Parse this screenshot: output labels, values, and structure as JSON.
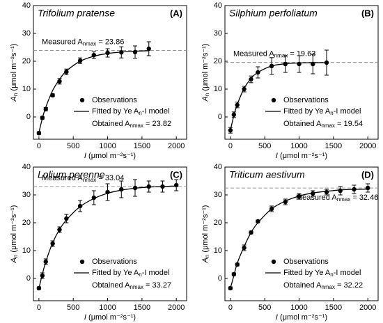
{
  "chart_data": [
    {
      "type": "scatter",
      "title": "Trifolium pratense",
      "panel_label": "(A)",
      "x_label": "I",
      "x_label_unit": " (μmol m⁻²s⁻¹)",
      "y_label": "A",
      "y_label_sub": "n",
      "y_label_unit": " (μmol m⁻²s⁻¹)",
      "x": [
        0,
        50,
        100,
        200,
        300,
        400,
        600,
        800,
        1000,
        1200,
        1400,
        1600
      ],
      "series": [
        {
          "name": "Observations",
          "color": "#000000",
          "values": [
            -5.8,
            -0.3,
            2.8,
            7.8,
            12.8,
            16.2,
            20.2,
            22.2,
            23,
            23.2,
            23.3,
            24.5
          ],
          "errors": [
            0.5,
            0.5,
            0.6,
            0.5,
            1,
            1,
            1,
            1.2,
            1.5,
            2,
            2.2,
            2.5
          ]
        },
        {
          "name": "Fitted by Ye A",
          "name_sub": "n",
          "name_tail": "-I model",
          "color": "#000000",
          "values": [
            -5.6,
            -0.5,
            3.5,
            9.5,
            13.5,
            16.5,
            20,
            21.8,
            22.8,
            23.3,
            23.6,
            23.8
          ]
        }
      ],
      "measured": {
        "prefix": "Measured A",
        "sub": "nmax",
        "eq": " = ",
        "value": 23.86
      },
      "obtained": {
        "prefix": "Obtained A",
        "sub": "nmax",
        "eq": " = ",
        "value": 23.82
      },
      "xlim": [
        -80,
        2150
      ],
      "ylim": [
        -8,
        40
      ],
      "xticks": [
        0,
        500,
        1000,
        1500,
        2000
      ],
      "yticks": [
        0,
        10,
        20,
        30,
        40
      ]
    },
    {
      "type": "scatter",
      "title": "Silphium perfoliatum",
      "panel_label": "(B)",
      "x_label": "I",
      "x_label_unit": " (μmol m⁻²s⁻¹)",
      "y_label": "A",
      "y_label_sub": "n",
      "y_label_unit": " (μmol m⁻²s⁻¹)",
      "x": [
        0,
        50,
        100,
        200,
        300,
        400,
        600,
        800,
        1000,
        1200,
        1400
      ],
      "series": [
        {
          "name": "Observations",
          "color": "#000000",
          "values": [
            -4.8,
            0.8,
            4.3,
            10,
            13.5,
            16,
            18.3,
            19,
            19,
            19,
            19.5
          ],
          "errors": [
            1,
            1,
            1,
            1,
            1.2,
            2,
            3,
            3,
            3,
            3.5,
            4.5
          ]
        },
        {
          "name": "Fitted by Ye A",
          "name_sub": "n",
          "name_tail": "-I model",
          "color": "#000000",
          "values": [
            -4.8,
            0.5,
            4.5,
            10.3,
            13.8,
            16,
            18.3,
            19.1,
            19.4,
            19.5,
            19.5
          ]
        }
      ],
      "measured": {
        "prefix": "Measured A",
        "sub": "nmax",
        "eq": " = ",
        "value": 19.63
      },
      "obtained": {
        "prefix": "Obtained A",
        "sub": "nmax",
        "eq": " = ",
        "value": 19.54
      },
      "xlim": [
        -80,
        2150
      ],
      "ylim": [
        -8,
        40
      ],
      "xticks": [
        0,
        500,
        1000,
        1500,
        2000
      ],
      "yticks": [
        0,
        10,
        20,
        30,
        40
      ]
    },
    {
      "type": "scatter",
      "title": "Lolium perenne",
      "panel_label": "(C)",
      "x_label": "I",
      "x_label_unit": " (μmol m⁻²s⁻¹)",
      "y_label": "A",
      "y_label_sub": "n",
      "y_label_unit": " (μmol m⁻²s⁻¹)",
      "x": [
        0,
        50,
        100,
        200,
        300,
        400,
        600,
        800,
        1000,
        1200,
        1400,
        1600,
        1800,
        2000
      ],
      "series": [
        {
          "name": "Observations",
          "color": "#000000",
          "values": [
            -3.5,
            1,
            6,
            12.5,
            17.5,
            21.5,
            26,
            29,
            31,
            32,
            32.5,
            33,
            33,
            33.5
          ],
          "errors": [
            0.5,
            1,
            1,
            1,
            1,
            1.5,
            2,
            2.5,
            3,
            3,
            3,
            2,
            2,
            2
          ]
        },
        {
          "name": "Fitted by Ye A",
          "name_sub": "n",
          "name_tail": "-I model",
          "color": "#000000",
          "values": [
            -3.5,
            1.5,
            6,
            12.8,
            17.6,
            21,
            25.8,
            28.7,
            30.6,
            31.7,
            32.4,
            32.8,
            33,
            33.2
          ]
        }
      ],
      "measured": {
        "prefix": "Measured A",
        "sub": "nmax",
        "eq": " = ",
        "value": 33.04
      },
      "obtained": {
        "prefix": "Obtained A",
        "sub": "nmax",
        "eq": " = ",
        "value": 33.27
      },
      "xlim": [
        -80,
        2150
      ],
      "ylim": [
        -8,
        40
      ],
      "xticks": [
        0,
        500,
        1000,
        1500,
        2000
      ],
      "yticks": [
        0,
        10,
        20,
        30,
        40
      ]
    },
    {
      "type": "scatter",
      "title": "Triticum aestivum",
      "panel_label": "(D)",
      "x_label": "I",
      "x_label_unit": " (μmol m⁻²s⁻¹)",
      "y_label": "A",
      "y_label_sub": "n",
      "y_label_unit": " (μmol m⁻²s⁻¹)",
      "x": [
        0,
        50,
        100,
        200,
        300,
        400,
        600,
        800,
        1000,
        1200,
        1400,
        1600,
        1800,
        2000
      ],
      "series": [
        {
          "name": "Observations",
          "color": "#000000",
          "values": [
            -3.5,
            1.5,
            5,
            11,
            16.5,
            20.5,
            25,
            27.5,
            29.5,
            30.5,
            31,
            31.5,
            32,
            32.5
          ],
          "errors": [
            0.5,
            0.5,
            0.5,
            1,
            0.5,
            0.5,
            1,
            1,
            1,
            1,
            1,
            1.5,
            1.5,
            1.5
          ]
        },
        {
          "name": "Fitted by Ye A",
          "name_sub": "n",
          "name_tail": "-I model",
          "color": "#000000",
          "values": [
            -3.5,
            1,
            5.5,
            11.5,
            16.5,
            20,
            25,
            27.8,
            29.6,
            30.7,
            31.3,
            31.8,
            32,
            32.1
          ]
        }
      ],
      "measured": {
        "prefix": "Measured A",
        "sub": "nmax",
        "eq": " = ",
        "value": 32.46
      },
      "obtained": {
        "prefix": "Obtained A",
        "sub": "nmax",
        "eq": " = ",
        "value": 32.22
      },
      "xlim": [
        -80,
        2150
      ],
      "ylim": [
        -8,
        40
      ],
      "xticks": [
        0,
        500,
        1000,
        1500,
        2000
      ],
      "yticks": [
        0,
        10,
        20,
        30,
        40
      ]
    }
  ]
}
